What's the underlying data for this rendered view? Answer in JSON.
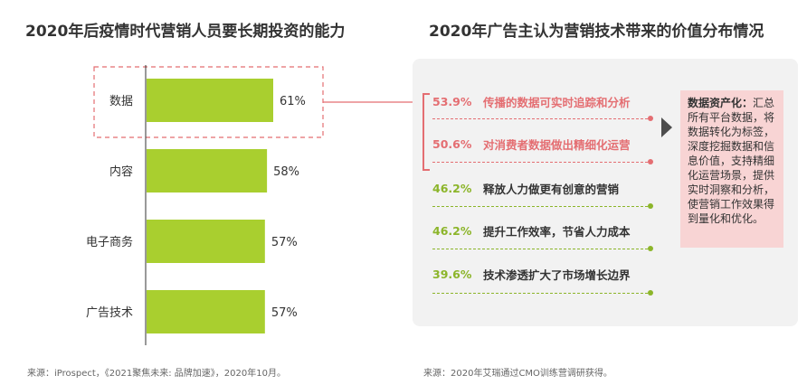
{
  "left_title": "2020年后疫情时代营销人员要长期投资的能力",
  "right_title": "2020年广告主认为营销技术带来的价值分布情况",
  "chart_data": {
    "type": "bar",
    "orientation": "horizontal",
    "categories": [
      "数据",
      "内容",
      "电子商务",
      "广告技术"
    ],
    "values": [
      61,
      58,
      57,
      57
    ],
    "value_labels": [
      "61%",
      "58%",
      "57%",
      "57%"
    ],
    "highlighted_category": "数据",
    "bar_color": "#a9cf2f",
    "highlight_color": "#e46e72",
    "grid": false
  },
  "right_items": [
    {
      "pct": "53.9%",
      "text": "传播的数据可实时追踪和分析",
      "color": "red"
    },
    {
      "pct": "50.6%",
      "text": "对消费者数据做出精细化运营",
      "color": "red"
    },
    {
      "pct": "46.2%",
      "text": "释放人力做更有创意的营销",
      "color": "green"
    },
    {
      "pct": "46.2%",
      "text": "提升工作效率，节省人力成本",
      "color": "green"
    },
    {
      "pct": "39.6%",
      "text": "技术渗透扩大了市场增长边界",
      "color": "green"
    }
  ],
  "note": {
    "heading": "数据资产化：",
    "body": "汇总所有平台数据，将数据转化为标签，深度挖掘数据和信息价值，支持精细化运营场景，提供实时洞察和分析，使营销工作效果得到量化和优化。"
  },
  "left_source": "来源：iProspect，《2021聚焦未来: 品牌加速》，2020年10月。",
  "right_source": "来源：2020年艾瑞通过CMO训练营调研获得。",
  "colors": {
    "red": "#e46e72",
    "green": "#8cb52a",
    "panel": "#f2f2f2",
    "note_bg": "#f8d4d4"
  }
}
